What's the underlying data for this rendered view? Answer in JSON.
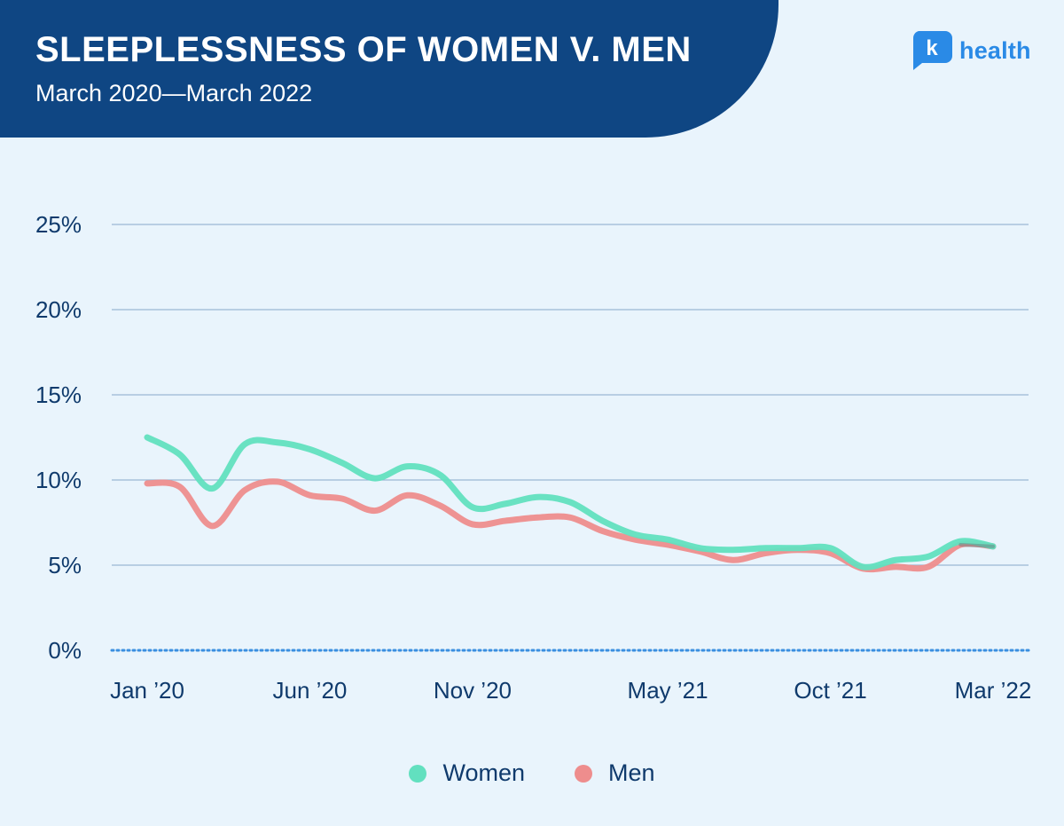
{
  "header": {
    "title": "SLEEPLESSNESS OF WOMEN V. MEN",
    "subtitle": "March 2020—March 2022"
  },
  "brand": {
    "mark": "k",
    "name": "health",
    "color": "#2a8ae6"
  },
  "colors": {
    "banner": "#0f4683",
    "background": "#e9f4fc",
    "grid": "#9ab8d4",
    "zero_line": "#3a8fe0",
    "women": "#62e0bf",
    "men": "#ee8d8d",
    "axis_text": "#0f3a6c"
  },
  "legend": [
    {
      "label": "Women",
      "color": "#62e0bf"
    },
    {
      "label": "Men",
      "color": "#ee8d8d"
    }
  ],
  "chart_data": {
    "type": "line",
    "title": "SLEEPLESSNESS OF WOMEN V. MEN",
    "subtitle": "March 2020—March 2022",
    "xlabel": "",
    "ylabel": "",
    "ylim": [
      0,
      25
    ],
    "yticks": [
      {
        "value": 25,
        "label": "25%"
      },
      {
        "value": 20,
        "label": "20%"
      },
      {
        "value": 15,
        "label": "15%"
      },
      {
        "value": 10,
        "label": "10%"
      },
      {
        "value": 5,
        "label": "5%"
      },
      {
        "value": 0,
        "label": "0%"
      }
    ],
    "xticks": [
      {
        "index": 0,
        "label": "Jan ’20"
      },
      {
        "index": 5,
        "label": "Jun ’20"
      },
      {
        "index": 10,
        "label": "Nov ’20"
      },
      {
        "index": 16,
        "label": "May ’21"
      },
      {
        "index": 21,
        "label": "Oct ’21"
      },
      {
        "index": 26,
        "label": "Mar ’22"
      }
    ],
    "x": [
      "Jan 2020",
      "Feb 2020",
      "Mar 2020",
      "Apr 2020",
      "May 2020",
      "Jun 2020",
      "Jul 2020",
      "Aug 2020",
      "Sep 2020",
      "Oct 2020",
      "Nov 2020",
      "Dec 2020",
      "Jan 2021",
      "Feb 2021",
      "Mar 2021",
      "Apr 2021",
      "May 2021",
      "Jun 2021",
      "Jul 2021",
      "Aug 2021",
      "Sep 2021",
      "Oct 2021",
      "Nov 2021",
      "Dec 2021",
      "Jan 2022",
      "Feb 2022",
      "Mar 2022"
    ],
    "series": [
      {
        "name": "Women",
        "color": "#62e0bf",
        "values": [
          12.5,
          11.5,
          9.5,
          12.1,
          12.2,
          11.8,
          11.0,
          10.1,
          10.8,
          10.3,
          8.4,
          8.6,
          9.0,
          8.7,
          7.6,
          6.8,
          6.5,
          6.0,
          5.9,
          6.0,
          6.0,
          6.0,
          4.9,
          5.3,
          5.5,
          6.4,
          6.1
        ]
      },
      {
        "name": "Men",
        "color": "#ee8d8d",
        "values": [
          9.8,
          9.6,
          7.3,
          9.4,
          9.9,
          9.1,
          8.9,
          8.2,
          9.1,
          8.5,
          7.4,
          7.6,
          7.8,
          7.8,
          7.0,
          6.5,
          6.2,
          5.8,
          5.3,
          5.7,
          5.9,
          5.7,
          4.8,
          4.9,
          4.9,
          6.2,
          6.1
        ]
      }
    ],
    "grid": true,
    "legend_position": "bottom-center"
  }
}
